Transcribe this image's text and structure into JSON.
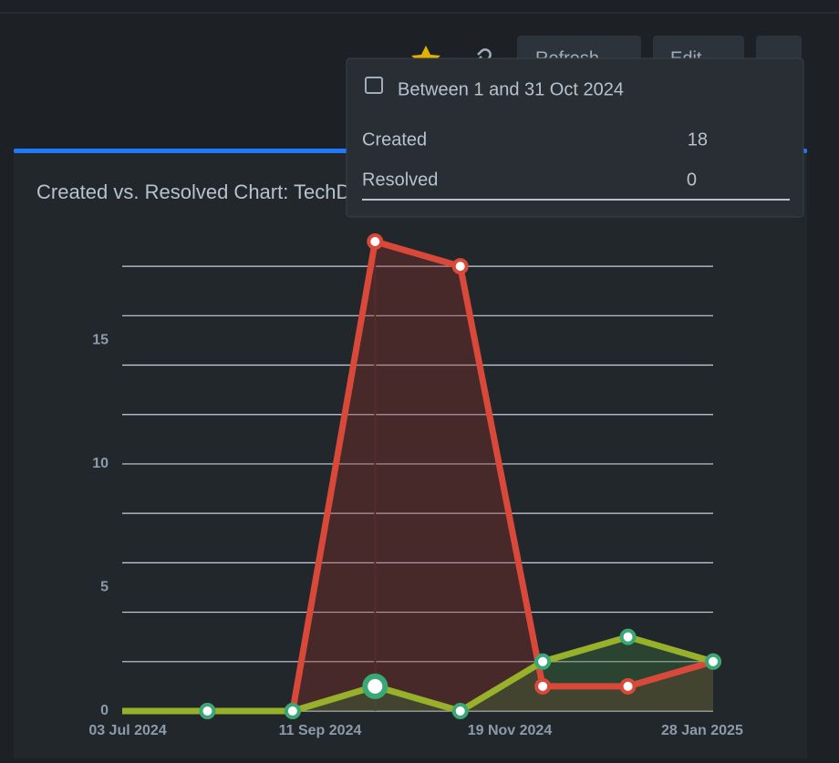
{
  "toolbar": {
    "refresh": "Refresh",
    "edit": "Edit",
    "more": "..."
  },
  "tooltip": {
    "title": "Between 1 and 31 Oct 2024",
    "values": [
      18,
      0
    ]
  },
  "chart_data": {
    "type": "line",
    "title": "Created vs. Resolved Chart: TechDept - all squads",
    "x": [
      "2024-07-01",
      "2024-08-01",
      "2024-09-01",
      "2024-10-01",
      "2024-11-01",
      "2024-12-01",
      "2025-01-01",
      "2025-02-01"
    ],
    "xlim": [
      "2024-07-01",
      "2025-02-01"
    ],
    "xticks": [
      {
        "value": "2024-07-03",
        "label": "03 Jul 2024"
      },
      {
        "value": "2024-09-11",
        "label": "11 Sep 2024"
      },
      {
        "value": "2024-11-19",
        "label": "19 Nov 2024"
      },
      {
        "value": "2025-01-28",
        "label": "28 Jan 2025"
      }
    ],
    "ylim": [
      0,
      19
    ],
    "yticks": [
      0,
      5,
      10,
      15
    ],
    "grid_lines": [
      0,
      2,
      4,
      6,
      8,
      10,
      12,
      14,
      16,
      18
    ],
    "grid": true,
    "series": [
      {
        "name": "Created",
        "color": "#d9493a",
        "fill": "rgba(140,45,40,0.35)",
        "values": [
          0,
          0,
          0,
          19,
          18,
          1,
          1,
          2
        ]
      },
      {
        "name": "Resolved",
        "color": "#97b12a",
        "marker": "#3aa776",
        "fill": "rgba(60,120,60,0.35)",
        "values": [
          0,
          0,
          0,
          1,
          0,
          2,
          3,
          2
        ]
      }
    ]
  }
}
